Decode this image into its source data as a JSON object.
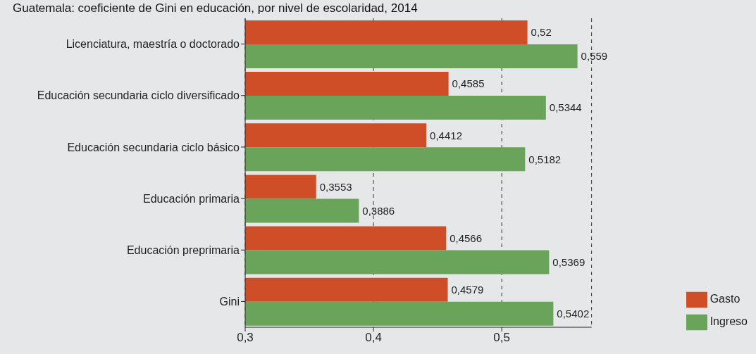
{
  "chart_data": {
    "type": "bar",
    "orientation": "horizontal",
    "title": "Guatemala: coeficiente de Gini en educación, por nivel de escolaridad, 2014",
    "categories": [
      "Licenciatura, maestría o doctorado",
      "Educación secundaria ciclo diversificado",
      "Educación secundaria ciclo básico",
      "Educación primaria",
      "Educación preprimaria",
      "Gini"
    ],
    "series": [
      {
        "name": "Gasto",
        "color": "#d04e27",
        "values": [
          0.52,
          0.4585,
          0.4412,
          0.3553,
          0.4566,
          0.4579
        ],
        "value_labels": [
          "0,52",
          "0,4585",
          "0,4412",
          "0,3553",
          "0,4566",
          "0,4579"
        ]
      },
      {
        "name": "Ingreso",
        "color": "#6aa35a",
        "values": [
          0.559,
          0.5344,
          0.5182,
          0.3886,
          0.5369,
          0.5402
        ],
        "value_labels": [
          "0,559",
          "0,5344",
          "0,5182",
          "0,3886",
          "0,5369",
          "0,5402"
        ]
      }
    ],
    "xlim": [
      0.3,
      0.57
    ],
    "xticks": [
      {
        "value": 0.3,
        "label": "0,3"
      },
      {
        "value": 0.4,
        "label": "0,4"
      },
      {
        "value": 0.5,
        "label": "0,5"
      }
    ],
    "grid": "x",
    "legend": "bottom right"
  }
}
